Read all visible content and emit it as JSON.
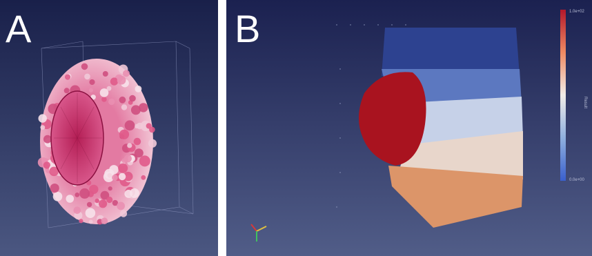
{
  "figure": {
    "panels": [
      {
        "letter": "A",
        "subject": "hemispherical particle cluster (pink spheres)"
      },
      {
        "letter": "B",
        "subject": "layered particle block with red inclusion"
      }
    ]
  },
  "colors": {
    "background_top": "#1a1f4a",
    "background_bottom": "#4c5883",
    "sphere_pink": "#e05a8a",
    "sphere_light": "#f1c9d8",
    "inclusion_red": "#a81522",
    "layer_navy": "#2c3f8c",
    "layer_mid_blue": "#6f87c6",
    "layer_pale": "#c9d3e6",
    "layer_peach": "#e0a37b",
    "layer_orange": "#d88a5a"
  },
  "colorbar": {
    "top_label": "1.0e+02",
    "bottom_label": "0.0e+00",
    "side_label": "Result"
  }
}
